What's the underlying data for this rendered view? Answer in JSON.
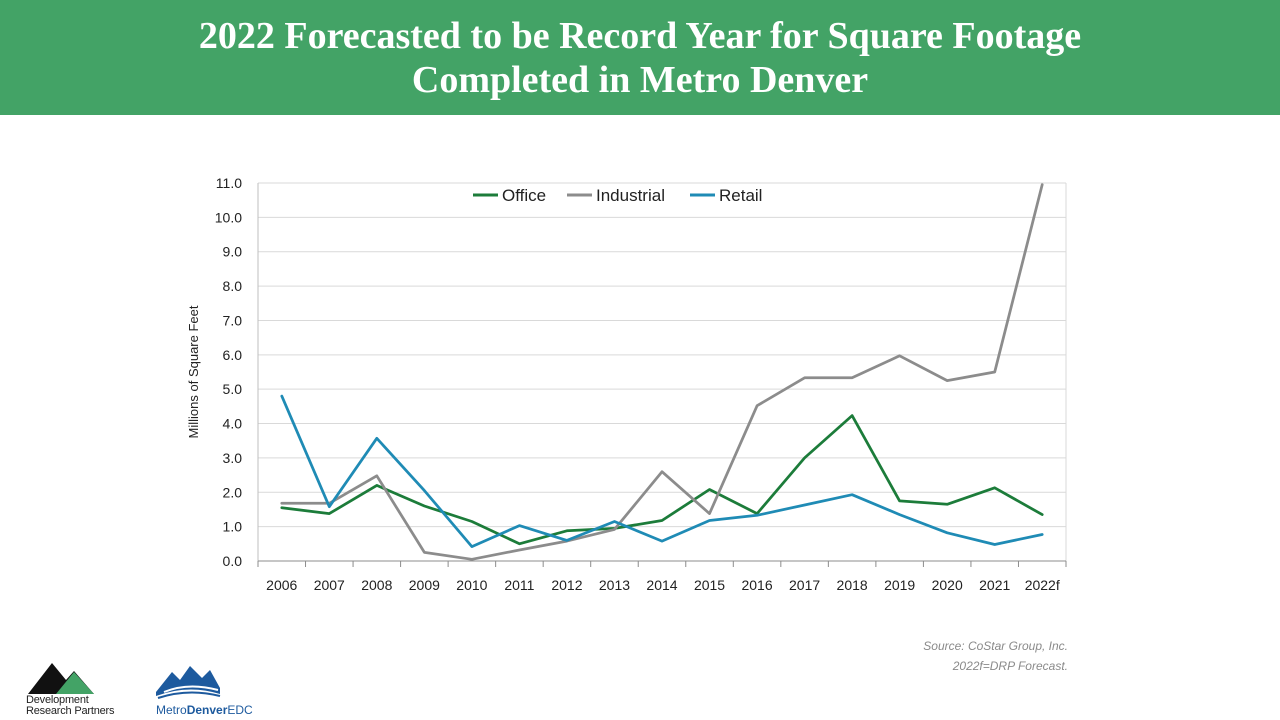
{
  "header": {
    "title_line1": "2022 Forecasted to be Record Year for Square Footage",
    "title_line2": "Completed in Metro Denver"
  },
  "colors": {
    "header_bg": "#43a366",
    "office": "#1c7c3a",
    "industrial": "#8c8c8c",
    "retail": "#1f8bb5"
  },
  "chart_data": {
    "type": "line",
    "categories": [
      "2006",
      "2007",
      "2008",
      "2009",
      "2010",
      "2011",
      "2012",
      "2013",
      "2014",
      "2015",
      "2016",
      "2017",
      "2018",
      "2019",
      "2020",
      "2021",
      "2022f"
    ],
    "series": [
      {
        "name": "Office",
        "color": "#1c7c3a",
        "values": [
          1.55,
          1.38,
          2.2,
          1.6,
          1.15,
          0.5,
          0.88,
          0.95,
          1.18,
          2.08,
          1.38,
          3.0,
          4.23,
          1.75,
          1.65,
          2.13,
          1.35
        ]
      },
      {
        "name": "Industrial",
        "color": "#8c8c8c",
        "values": [
          1.68,
          1.68,
          2.48,
          0.25,
          0.05,
          0.32,
          0.58,
          0.92,
          2.6,
          1.38,
          4.52,
          5.33,
          5.33,
          5.97,
          5.25,
          5.5,
          10.95
        ]
      },
      {
        "name": "Retail",
        "color": "#1f8bb5",
        "values": [
          4.8,
          1.58,
          3.57,
          2.05,
          0.42,
          1.03,
          0.6,
          1.15,
          0.58,
          1.18,
          1.33,
          1.63,
          1.93,
          1.35,
          0.82,
          0.48,
          0.77
        ]
      }
    ],
    "ylabel": "Millions of Square Feet",
    "xlabel": "",
    "ylim": [
      0,
      11
    ],
    "yticks": [
      "0.0",
      "1.0",
      "2.0",
      "3.0",
      "4.0",
      "5.0",
      "6.0",
      "7.0",
      "8.0",
      "9.0",
      "10.0",
      "11.0"
    ],
    "grid": true,
    "legend_position": "top"
  },
  "source": {
    "line1": "Source: CoStar Group, Inc.",
    "line2": "2022f=DRP Forecast."
  },
  "logos": {
    "drp_line1": "Development",
    "drp_line2": "Research Partners",
    "edc_part1": "Metro",
    "edc_part2": "Denver",
    "edc_part3": "EDC"
  }
}
